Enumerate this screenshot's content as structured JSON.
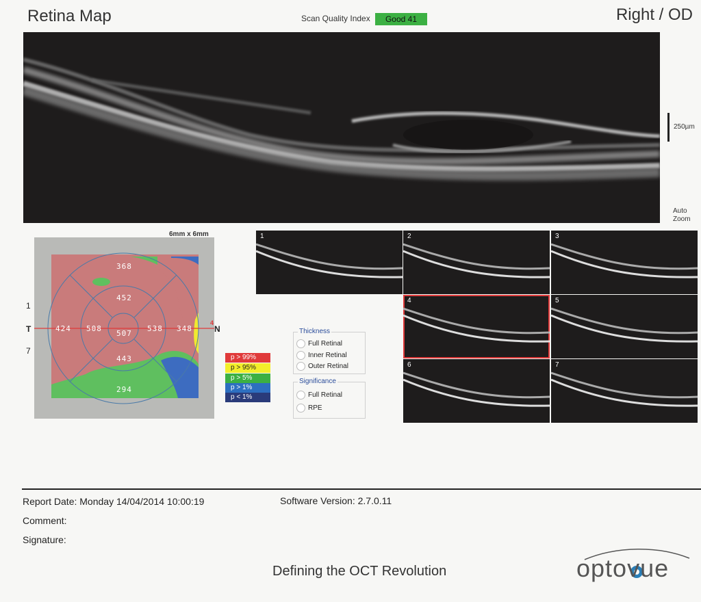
{
  "header": {
    "title": "Retina Map",
    "scan_quality_label": "Scan Quality Index",
    "scan_quality_value": "Good  41",
    "eye": "Right / OD"
  },
  "main_scan": {
    "scale_label": "250µm",
    "zoom_line1": "Auto",
    "zoom_line2": "Zoom"
  },
  "thickness_map": {
    "size_label": "6mm x 6mm",
    "temporal_label": "T",
    "nasal_label": "N",
    "line_1_label": "1",
    "line_7_label": "7",
    "line_4_label": "4",
    "sectors": {
      "superior_outer": "368",
      "superior_inner": "452",
      "temporal_outer": "424",
      "temporal_inner": "508",
      "center": "507",
      "nasal_inner": "538",
      "nasal_outer": "348",
      "inferior_inner": "443",
      "inferior_outer": "294"
    }
  },
  "legend": [
    {
      "label": "p > 99%",
      "color": "#e03a3a",
      "text_color": "#fff"
    },
    {
      "label": "p > 95%",
      "color": "#f3ee2a",
      "text_color": "#222"
    },
    {
      "label": "p > 5%",
      "color": "#3cb043",
      "text_color": "#fff"
    },
    {
      "label": "p > 1%",
      "color": "#2d6fc0",
      "text_color": "#fff"
    },
    {
      "label": "p < 1%",
      "color": "#2a3b7a",
      "text_color": "#fff"
    }
  ],
  "thickness_panel": {
    "title": "Thickness",
    "options": [
      "Full Retinal",
      "Inner Retinal",
      "Outer Retinal"
    ]
  },
  "significance_panel": {
    "title": "Significance",
    "options": [
      "Full Retinal",
      "RPE"
    ]
  },
  "thumbnails": [
    "1",
    "2",
    "3",
    "4",
    "5",
    "6",
    "7"
  ],
  "selected_thumbnail": "4",
  "footer": {
    "report_date": "Report Date: Monday 14/04/2014 10:00:19",
    "software_version": "Software Version: 2.7.0.11",
    "comment": "Comment:",
    "signature": "Signature:",
    "tagline": "Defining the OCT Revolution",
    "logo_text": "optovue"
  }
}
